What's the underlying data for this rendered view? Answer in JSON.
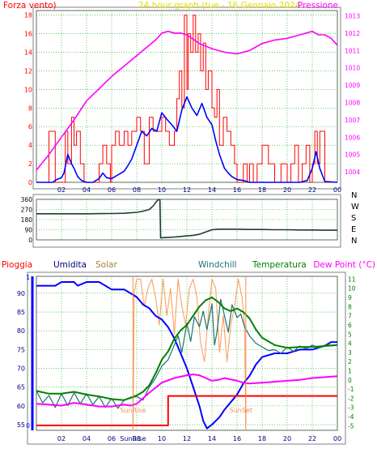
{
  "colors": {
    "background": "#ffffff",
    "plot_bg": "#ffffff",
    "grid": "#00aa00",
    "frame": "#808080",
    "wind": "#ff0000",
    "gust": "#0000ff",
    "pressure": "#ff00ff",
    "title": "#ffff00",
    "direction": "#203a3a",
    "rain": "#ff0000",
    "humidity": "#0000ff",
    "solar": "#ffa060",
    "windchill": "#207070",
    "temperature": "#008000",
    "dewpoint": "#ff00ff",
    "sun_marker": "#f09050",
    "label_dark": "#000080"
  },
  "chart_data": [
    {
      "type": "line",
      "title": "24 hour graph (tue - 16 Gennaio 2024",
      "left_label": "Forza vento)",
      "right_label": "Pressione",
      "x_ticks": [
        "02",
        "04",
        "06",
        "08",
        "10",
        "12",
        "14",
        "16",
        "18",
        "20",
        "22",
        "00"
      ],
      "x_tick_hours": [
        2,
        4,
        6,
        8,
        10,
        12,
        14,
        16,
        18,
        20,
        22,
        24
      ],
      "ylim": [
        0,
        18.5
      ],
      "y_ticks": [
        0,
        2,
        4,
        6,
        8,
        10,
        12,
        14,
        16,
        18
      ],
      "y2lim": [
        1003.4,
        1013.3
      ],
      "y2_ticks": [
        1004,
        1005,
        1006,
        1007,
        1008,
        1009,
        1010,
        1011,
        1012,
        1013
      ],
      "series": [
        {
          "role": "wind_max",
          "x": [
            0,
            0.5,
            0.9,
            1.0,
            1.5,
            1.9,
            2.0,
            2.3,
            2.5,
            2.8,
            3.0,
            3.2,
            3.5,
            3.8,
            4.0,
            4.4,
            4.8,
            5.0,
            5.3,
            5.6,
            5.9,
            6.0,
            6.3,
            6.6,
            7.0,
            7.3,
            7.6,
            8.0,
            8.3,
            8.6,
            9.0,
            9.3,
            9.6,
            10.0,
            10.3,
            10.6,
            11.0,
            11.2,
            11.4,
            11.6,
            11.8,
            12.0,
            12.1,
            12.3,
            12.5,
            12.7,
            12.9,
            13.1,
            13.3,
            13.5,
            13.7,
            14.0,
            14.2,
            14.4,
            14.6,
            14.9,
            15.2,
            15.5,
            15.8,
            16.0,
            16.3,
            16.5,
            16.8,
            17.0,
            17.3,
            17.6,
            18.0,
            18.5,
            19.0,
            19.5,
            20.0,
            20.3,
            20.6,
            20.9,
            21.2,
            21.5,
            21.8,
            22.0,
            22.2,
            22.4,
            22.6,
            23.0,
            23.5,
            24.0
          ],
          "values": [
            0,
            0,
            0,
            5.5,
            0,
            0,
            0,
            5.5,
            2,
            7,
            4,
            5.5,
            2,
            0,
            0,
            0,
            0,
            2,
            4,
            2,
            0,
            4,
            5.5,
            4,
            5.5,
            4,
            5.5,
            7,
            5.5,
            2,
            7,
            5.5,
            5.5,
            7,
            5.5,
            4,
            5.5,
            9,
            12,
            8,
            18,
            10,
            16,
            14,
            18,
            14,
            16,
            12,
            15,
            10,
            12,
            8,
            7,
            10,
            4,
            7,
            5.5,
            4,
            2,
            0,
            0,
            2,
            0,
            2,
            0,
            2,
            4,
            2,
            0,
            2,
            0,
            2,
            4,
            0,
            2,
            4,
            0,
            2,
            5.5,
            2,
            5.5,
            0,
            0,
            0
          ]
        },
        {
          "role": "wind_avg",
          "x": [
            0,
            1.0,
            1.3,
            1.6,
            2.0,
            2.2,
            2.5,
            2.8,
            3.0,
            3.3,
            3.6,
            4.0,
            4.5,
            5.0,
            5.3,
            5.6,
            6.0,
            6.5,
            7.0,
            7.3,
            7.6,
            8.0,
            8.4,
            8.8,
            9.2,
            9.6,
            10.0,
            10.4,
            10.8,
            11.2,
            11.6,
            12.0,
            12.4,
            12.8,
            13.2,
            13.6,
            14.0,
            14.3,
            14.6,
            15.0,
            15.3,
            15.6,
            16.0,
            16.5,
            17.0,
            18.0,
            19.0,
            20.0,
            21.0,
            21.6,
            22.0,
            22.3,
            22.6,
            23.0,
            24.0
          ],
          "values": [
            0,
            0,
            0,
            0.3,
            0.5,
            1,
            3,
            2,
            1.5,
            0.6,
            0.2,
            0,
            0,
            0.4,
            1,
            0.5,
            0.4,
            0.8,
            1.2,
            1.8,
            2.5,
            4,
            5.5,
            5,
            5.8,
            5.5,
            7.5,
            6.8,
            6.2,
            5.5,
            7.8,
            9.2,
            8,
            7.2,
            8.5,
            7,
            6.2,
            4.5,
            3,
            1.5,
            1,
            0.6,
            0.3,
            0.2,
            0,
            0,
            0,
            0,
            0,
            0.2,
            1.5,
            3.3,
            1.5,
            0.1,
            0
          ]
        },
        {
          "role": "pressure",
          "axis": "right",
          "x": [
            0,
            1,
            2,
            3,
            4,
            5,
            6,
            7,
            8,
            9,
            9.5,
            10,
            10.5,
            11,
            11.5,
            12,
            13,
            14,
            15,
            16,
            17,
            17.5,
            18,
            19,
            20,
            21,
            21.5,
            22,
            22.5,
            23,
            23.5,
            24
          ],
          "values": [
            1004.1,
            1005.0,
            1006.0,
            1007.0,
            1008.1,
            1008.8,
            1009.5,
            1010.1,
            1010.7,
            1011.3,
            1011.6,
            1012.0,
            1012.1,
            1012.0,
            1012.0,
            1011.9,
            1011.4,
            1011.1,
            1010.9,
            1010.8,
            1011.0,
            1011.2,
            1011.4,
            1011.6,
            1011.7,
            1011.9,
            1012.0,
            1012.1,
            1011.9,
            1011.9,
            1011.7,
            1011.3
          ]
        }
      ]
    },
    {
      "type": "line",
      "title": "",
      "y_ticks": [
        0,
        90,
        180,
        270,
        360
      ],
      "ylim": [
        0,
        360
      ],
      "right_labels": [
        "N",
        "W",
        "S",
        "E",
        "N"
      ],
      "series": [
        {
          "role": "wind_direction",
          "x": [
            0,
            2,
            4,
            6,
            7,
            8,
            8.5,
            9,
            9.3,
            9.5,
            9.6,
            9.7,
            9.8,
            9.85,
            9.9,
            10.2,
            10.5,
            11,
            11.5,
            12,
            12.5,
            13,
            13.5,
            14,
            14.5,
            15,
            16,
            17,
            18,
            19,
            20,
            21,
            22,
            23,
            24
          ],
          "values": [
            232,
            232,
            232,
            234,
            236,
            245,
            255,
            270,
            300,
            330,
            345,
            355,
            358,
            355,
            18,
            20,
            22,
            25,
            30,
            35,
            40,
            50,
            70,
            90,
            95,
            95,
            95,
            92,
            92,
            90,
            90,
            88,
            88,
            86,
            86
          ]
        }
      ]
    },
    {
      "type": "line",
      "title": "",
      "labels": {
        "rain": "Pioggia",
        "humidity": "Umidita",
        "solar": "Solar",
        "windchill": "Windchill",
        "temperature": "Temperatura",
        "dewpoint": "Dew Point (°C)"
      },
      "x_ticks": [
        "02",
        "04",
        "06",
        "08",
        "10",
        "12",
        "14",
        "16",
        "18",
        "20",
        "22",
        "00"
      ],
      "x_tick_hours": [
        2,
        4,
        6,
        8,
        10,
        12,
        14,
        16,
        18,
        20,
        22,
        24
      ],
      "left_ylim": [
        53.5,
        94.5
      ],
      "left_ticks": [
        55,
        60,
        65,
        70,
        75,
        80,
        85,
        90
      ],
      "right_ylim": [
        -5.5,
        11.3
      ],
      "right_ticks": [
        -5,
        -4,
        -3,
        -2,
        -1,
        0,
        1,
        2,
        3,
        4,
        5,
        6,
        7,
        8,
        9,
        10,
        11
      ],
      "rain_axis_label": "0",
      "rain_top_label": "1",
      "sunrise_label": "SunRise",
      "sunset_label": "SunSet",
      "sunrise_hour": 7.7,
      "sunset_hour": 16.7,
      "series": [
        {
          "role": "humidity",
          "axis": "left",
          "x": [
            0,
            1.5,
            2.0,
            2.3,
            3.0,
            3.3,
            4.0,
            5.0,
            6.0,
            7.0,
            7.5,
            8.0,
            8.5,
            9.0,
            9.5,
            10,
            10.5,
            11,
            11.5,
            12,
            12.5,
            13,
            13.3,
            13.6,
            14,
            14.3,
            14.6,
            15,
            15.5,
            16,
            16.5,
            17,
            17.5,
            18,
            19,
            20,
            21,
            22,
            23,
            23.5,
            24
          ],
          "values": [
            92,
            92,
            93,
            93,
            93,
            92,
            93,
            93,
            91,
            91,
            90,
            89,
            87,
            86,
            84,
            83,
            81,
            78,
            74,
            70,
            65,
            60,
            56,
            54,
            55,
            56,
            57,
            59,
            61,
            63,
            66,
            68,
            71,
            73,
            74,
            74,
            75,
            75,
            76,
            77,
            77
          ]
        },
        {
          "role": "temperature",
          "axis": "right",
          "x": [
            0,
            1,
            2,
            3,
            4,
            5,
            6,
            7,
            8,
            8.5,
            9,
            9.5,
            10,
            10.5,
            11,
            11.5,
            12,
            12.5,
            13,
            13.5,
            14,
            14.5,
            15,
            15.5,
            16,
            16.5,
            17,
            17.5,
            18,
            19,
            20,
            21,
            22,
            23,
            24
          ],
          "values": [
            -1.2,
            -1.5,
            -1.5,
            -1.3,
            -1.6,
            -1.8,
            -2.1,
            -2.2,
            -1.7,
            -1.3,
            -0.6,
            0.7,
            2.2,
            3.1,
            4.5,
            5.4,
            6.0,
            7.0,
            8.0,
            8.7,
            9.0,
            8.5,
            7.8,
            7.5,
            7.8,
            7.4,
            6.7,
            5.5,
            4.6,
            3.8,
            3.5,
            3.6,
            3.6,
            3.7,
            3.8
          ]
        },
        {
          "role": "windchill",
          "axis": "right",
          "x": [
            0,
            0.5,
            1,
            1.5,
            2,
            2.5,
            3,
            3.5,
            4,
            4.5,
            5,
            5.5,
            6,
            6.5,
            7,
            7.5,
            8,
            8.5,
            9,
            9.5,
            10,
            10.5,
            11,
            11.3,
            11.6,
            12,
            12.3,
            12.6,
            13,
            13.3,
            13.6,
            14,
            14.2,
            14.4,
            14.7,
            15,
            15.3,
            15.6,
            16,
            16.3,
            16.6,
            17,
            17.5,
            18,
            18.5,
            19,
            19.5,
            20,
            20.5,
            21,
            21.5,
            22,
            22.5,
            23,
            24
          ],
          "values": [
            -1.2,
            -2.5,
            -1.7,
            -3.0,
            -1.5,
            -2.8,
            -1.4,
            -2.6,
            -1.5,
            -2.7,
            -1.8,
            -3.0,
            -2.0,
            -3.1,
            -2.2,
            -2.0,
            -1.8,
            -2.2,
            -0.8,
            0.2,
            1.5,
            2.2,
            3.8,
            4.8,
            3.0,
            6.2,
            4.2,
            6.9,
            5.8,
            7.5,
            5.5,
            8.3,
            3.8,
            5.2,
            8.8,
            7.0,
            5.2,
            8.2,
            6.8,
            7.2,
            5.8,
            4.8,
            4.0,
            3.6,
            3.2,
            3.3,
            2.9,
            3.6,
            3.1,
            3.7,
            3.4,
            3.8,
            3.5,
            3.8,
            3.8
          ]
        },
        {
          "role": "dewpoint",
          "axis": "right",
          "x": [
            0,
            1,
            2,
            3,
            4,
            5,
            6,
            7,
            7.5,
            8,
            9,
            10,
            11,
            12,
            12.5,
            13,
            13.5,
            14,
            14.5,
            15,
            16,
            16.5,
            17,
            18,
            19,
            20,
            21,
            22,
            23,
            24
          ],
          "values": [
            -2.6,
            -2.7,
            -2.8,
            -2.5,
            -2.7,
            -2.9,
            -2.9,
            -2.7,
            -2.8,
            -2.6,
            -1.4,
            -0.3,
            0.2,
            0.5,
            0.6,
            0.5,
            0.2,
            -0.1,
            0.0,
            0.2,
            -0.1,
            -0.3,
            -0.4,
            -0.3,
            -0.2,
            -0.1,
            0.0,
            0.2,
            0.3,
            0.4
          ]
        },
        {
          "role": "solar",
          "axis": "right",
          "x": [
            7.7,
            7.8,
            8.0,
            8.3,
            8.6,
            8.9,
            9.2,
            9.5,
            9.8,
            10.1,
            10.4,
            10.7,
            11.0,
            11.3,
            11.6,
            11.9,
            12.2,
            12.5,
            12.8,
            13.1,
            13.4,
            13.7,
            14.0,
            14.3,
            14.6,
            14.9,
            15.2,
            15.5,
            15.8,
            16.1,
            16.4,
            16.6,
            16.7
          ],
          "values": [
            -5,
            9.5,
            11,
            11,
            8,
            10,
            11,
            9,
            6,
            11,
            7,
            10,
            5,
            11,
            8,
            6,
            10,
            11,
            9,
            4,
            2,
            7,
            11,
            10,
            3,
            7,
            2,
            6,
            8,
            11,
            9,
            6,
            -5
          ]
        },
        {
          "role": "rain",
          "axis": "rain",
          "x": [
            0,
            10.5,
            10.5,
            24
          ],
          "values": [
            0,
            0,
            0.2,
            0.2
          ]
        }
      ]
    }
  ]
}
